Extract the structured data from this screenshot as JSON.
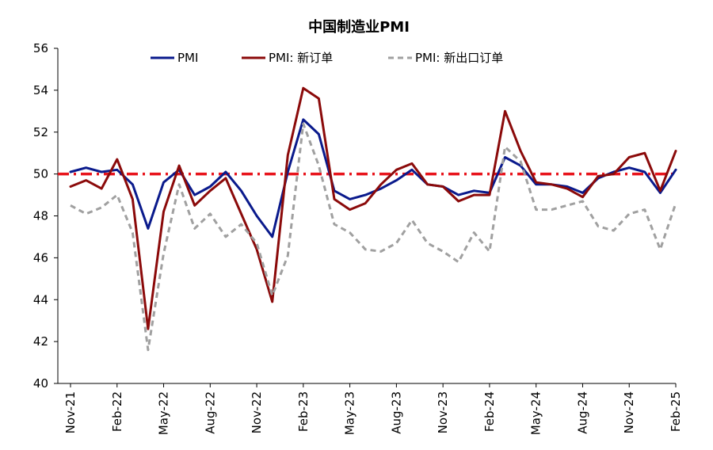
{
  "chart_data": {
    "type": "line",
    "title": "中国制造业PMI",
    "xlabel": "",
    "ylabel": "",
    "ylim": [
      40,
      56
    ],
    "yticks": [
      40,
      42,
      44,
      46,
      48,
      50,
      52,
      54,
      56
    ],
    "grid": false,
    "legend_placement": "top",
    "x": [
      "Nov-21",
      "Dec-21",
      "Jan-22",
      "Feb-22",
      "Mar-22",
      "Apr-22",
      "May-22",
      "Jun-22",
      "Jul-22",
      "Aug-22",
      "Sep-22",
      "Oct-22",
      "Nov-22",
      "Dec-22",
      "Jan-23",
      "Feb-23",
      "Mar-23",
      "Apr-23",
      "May-23",
      "Jun-23",
      "Jul-23",
      "Aug-23",
      "Sep-23",
      "Oct-23",
      "Nov-23",
      "Dec-23",
      "Jan-24",
      "Feb-24",
      "Mar-24",
      "Apr-24",
      "May-24",
      "Jun-24",
      "Jul-24",
      "Aug-24",
      "Sep-24",
      "Oct-24",
      "Nov-24",
      "Dec-24",
      "Jan-25",
      "Feb-25"
    ],
    "xtick_labels": [
      "Nov-21",
      "Feb-22",
      "May-22",
      "Aug-22",
      "Nov-22",
      "Feb-23",
      "May-23",
      "Aug-23",
      "Nov-23",
      "Feb-24",
      "May-24",
      "Aug-24",
      "Nov-24",
      "Feb-25"
    ],
    "reference_line": {
      "value": 50,
      "color": "#e8141c",
      "style": "dash-dot"
    },
    "series": [
      {
        "name": "PMI",
        "color": "#0a1a8c",
        "style": "solid",
        "values": [
          50.1,
          50.3,
          50.1,
          50.2,
          49.5,
          47.4,
          49.6,
          50.2,
          49.0,
          49.4,
          50.1,
          49.2,
          48.0,
          47.0,
          50.1,
          52.6,
          51.9,
          49.2,
          48.8,
          49.0,
          49.3,
          49.7,
          50.2,
          49.5,
          49.4,
          49.0,
          49.2,
          49.1,
          50.8,
          50.4,
          49.5,
          49.5,
          49.4,
          49.1,
          49.8,
          50.1,
          50.3,
          50.1,
          49.1,
          50.2
        ]
      },
      {
        "name": "PMI: 新订单",
        "color": "#8b0a0a",
        "style": "solid",
        "values": [
          49.4,
          49.7,
          49.3,
          50.7,
          48.8,
          42.6,
          48.2,
          50.4,
          48.5,
          49.2,
          49.8,
          48.1,
          46.4,
          43.9,
          50.9,
          54.1,
          53.6,
          48.8,
          48.3,
          48.6,
          49.5,
          50.2,
          50.5,
          49.5,
          49.4,
          48.7,
          49.0,
          49.0,
          53.0,
          51.1,
          49.6,
          49.5,
          49.3,
          48.9,
          49.9,
          50.0,
          50.8,
          51.0,
          49.2,
          51.1
        ]
      },
      {
        "name": "PMI: 新出口订单",
        "color": "#a0a0a0",
        "style": "dashed",
        "values": [
          48.5,
          48.1,
          48.4,
          49.0,
          47.2,
          41.6,
          46.2,
          49.5,
          47.4,
          48.1,
          47.0,
          47.6,
          46.7,
          44.2,
          46.1,
          52.4,
          50.4,
          47.6,
          47.2,
          46.4,
          46.3,
          46.7,
          47.8,
          46.7,
          46.3,
          45.8,
          47.2,
          46.3,
          51.3,
          50.6,
          48.3,
          48.3,
          48.5,
          48.7,
          47.5,
          47.3,
          48.1,
          48.3,
          46.4,
          48.6
        ]
      }
    ]
  }
}
